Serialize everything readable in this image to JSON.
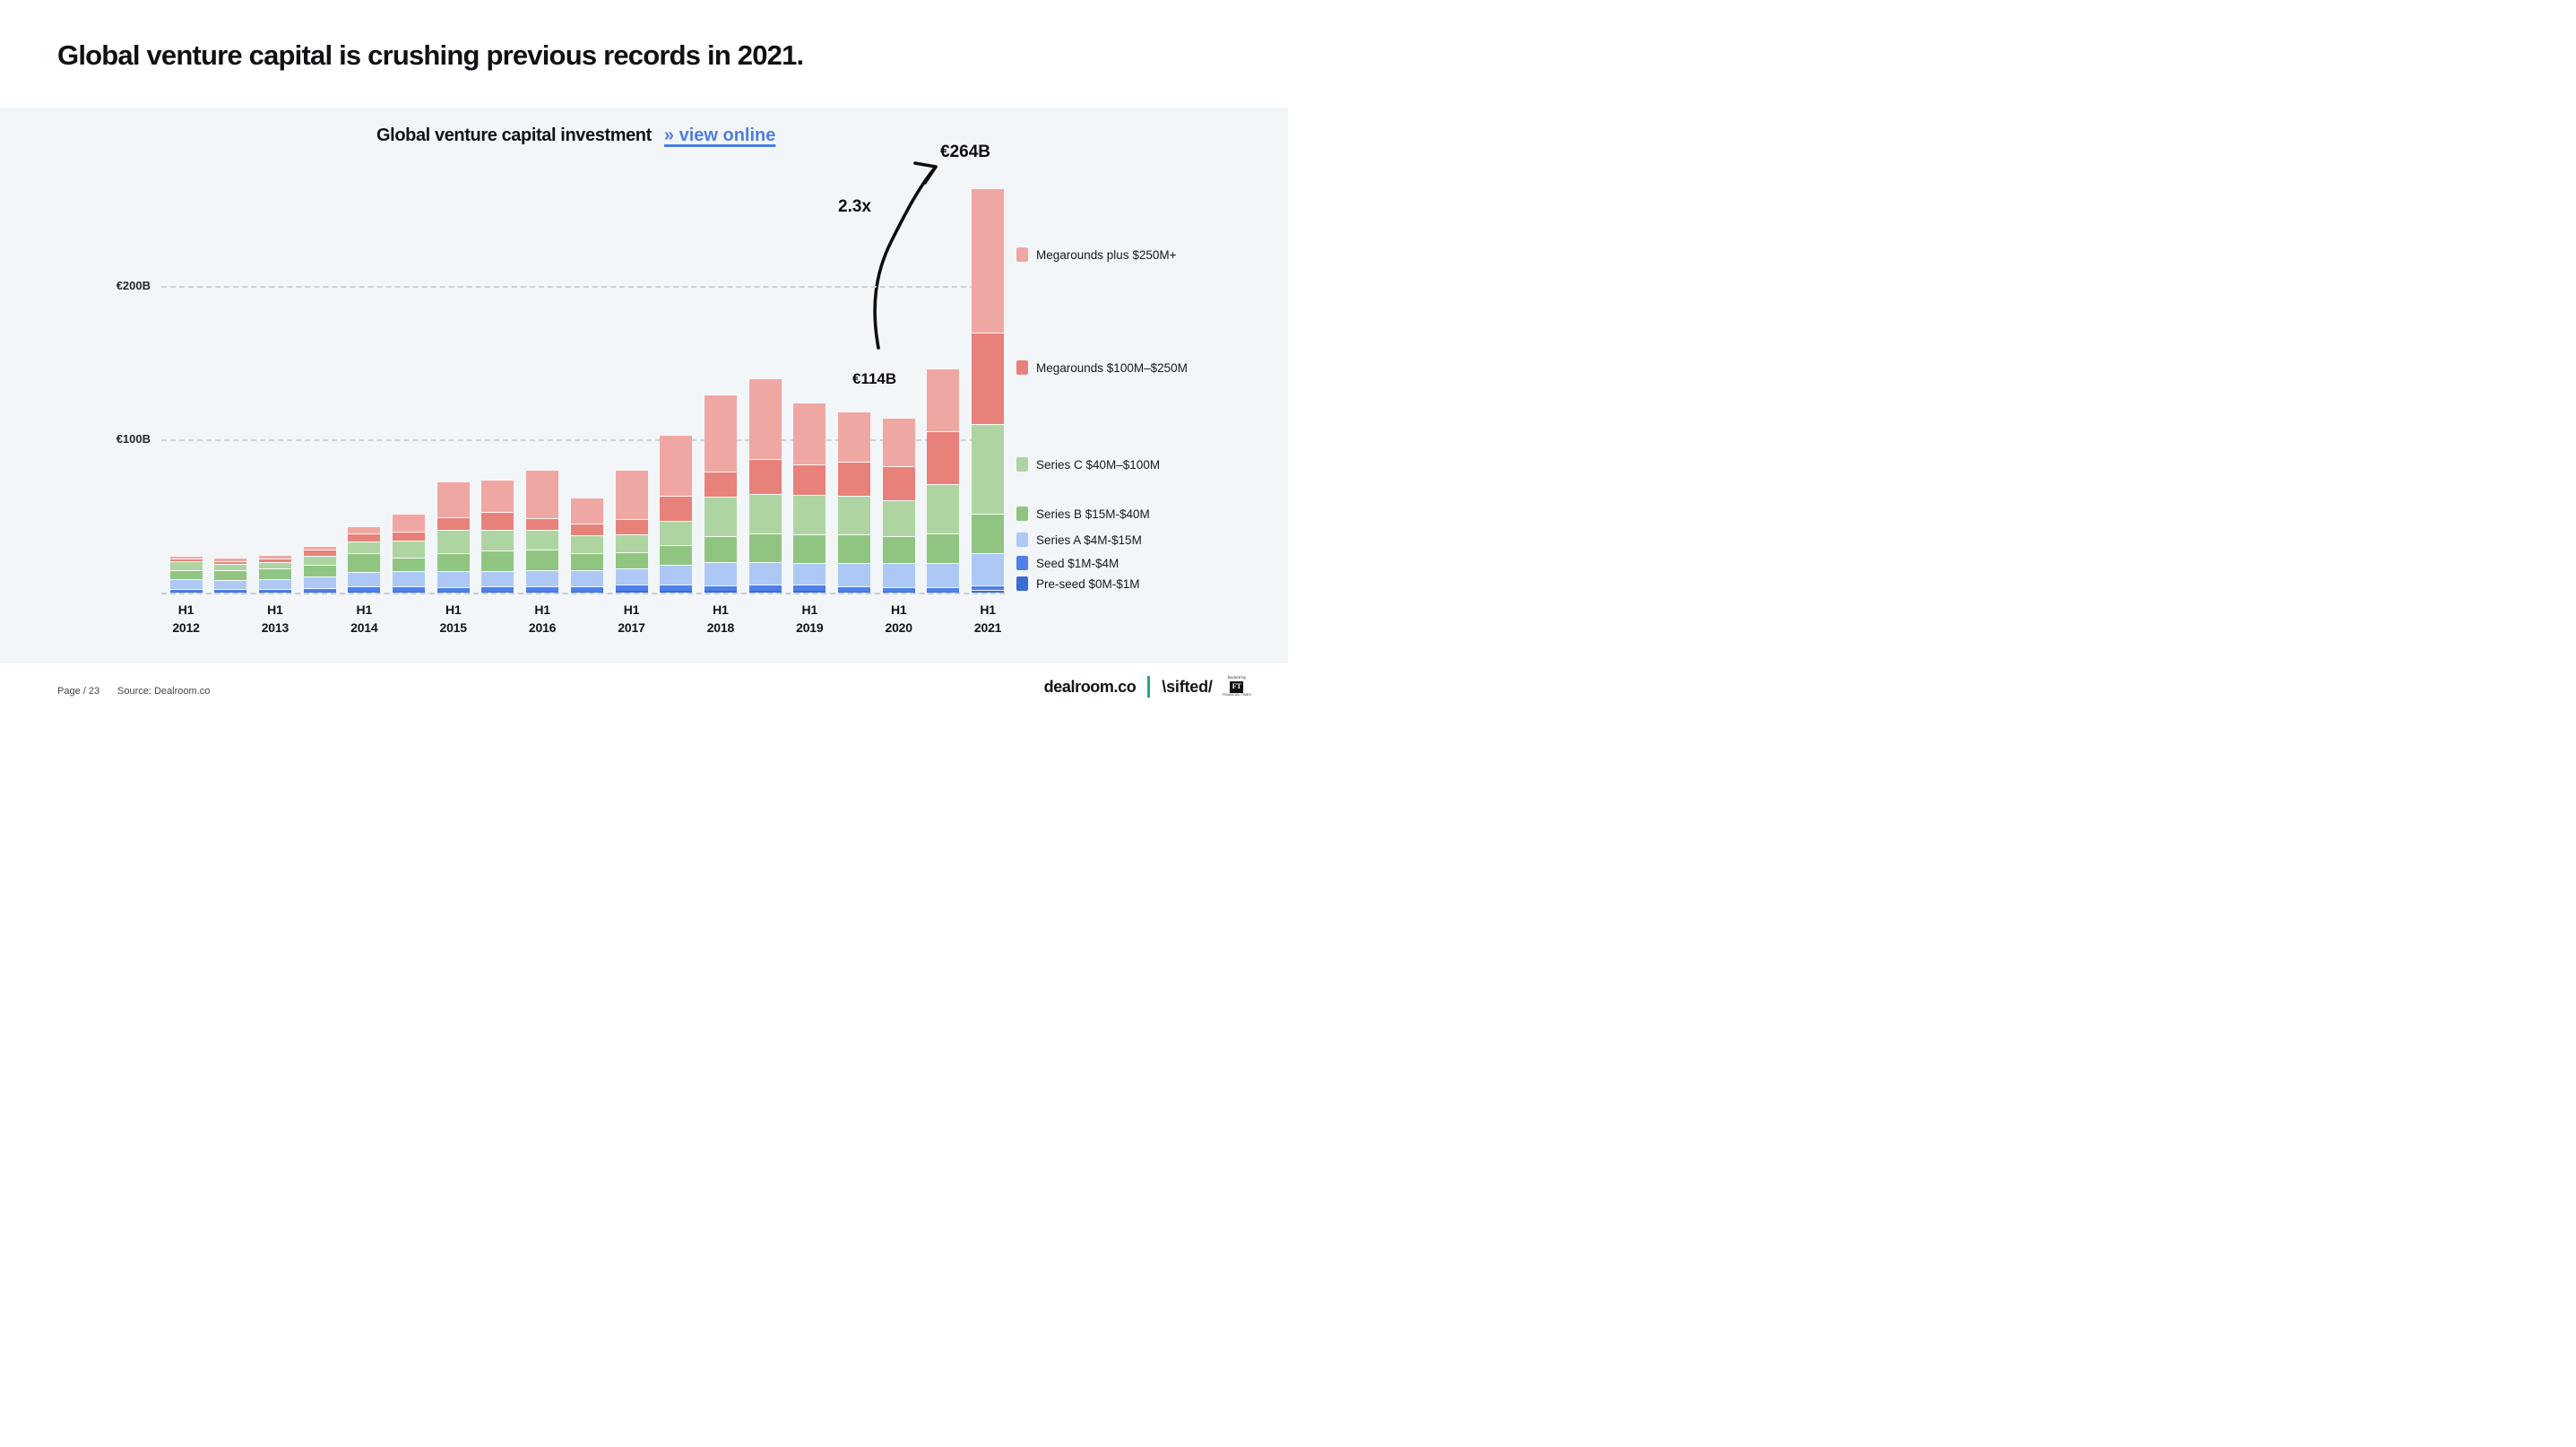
{
  "page": {
    "title": "Global venture capital is crushing previous records in 2021."
  },
  "chart_header": {
    "title": "Global venture capital investment",
    "link_label": "» view online"
  },
  "annotations": {
    "peak_value": "€264B",
    "multiplier": "2.3x",
    "reference_value": "€114B"
  },
  "y_axis": {
    "ticks": [
      {
        "label": "€200B",
        "value": 200
      },
      {
        "label": "€100B",
        "value": 100
      }
    ]
  },
  "legend": [
    {
      "label": "Megarounds plus $250M+",
      "color": "#efa7a3"
    },
    {
      "label": "Megarounds $100M–$250M",
      "color": "#e8817a"
    },
    {
      "label": "Series C $40M–$100M",
      "color": "#aed5a1"
    },
    {
      "label": "Series B $15M-$40M",
      "color": "#90c581"
    },
    {
      "label": "Series A $4M-$15M",
      "color": "#adc8f4"
    },
    {
      "label": "Seed $1M-$4M",
      "color": "#4d80e8"
    },
    {
      "label": "Pre-seed $0M-$1M",
      "color": "#3a6bd6"
    }
  ],
  "chart_data": {
    "type": "bar",
    "stacked": true,
    "title": "Global venture capital investment",
    "unit": "EUR billion (€B)",
    "ylim": [
      0,
      280
    ],
    "gridlines": [
      100,
      200
    ],
    "grid": "dashed-horizontal",
    "legend_position": "right",
    "categories": [
      "H1 2012",
      "H2 2012",
      "H1 2013",
      "H2 2013",
      "H1 2014",
      "H2 2014",
      "H1 2015",
      "H2 2015",
      "H1 2016",
      "H2 2016",
      "H1 2017",
      "H2 2017",
      "H1 2018",
      "H2 2018",
      "H1 2019",
      "H2 2019",
      "H1 2020",
      "H2 2020",
      "H1 2021"
    ],
    "x_tick_labels": [
      "H1 2012",
      "H1 2013",
      "H1 2014",
      "H1 2015",
      "H1 2016",
      "H1 2017",
      "H1 2018",
      "H1 2019",
      "H1 2020",
      "H1 2021"
    ],
    "series": [
      {
        "name": "Pre-seed $0M-$1M",
        "color": "#3a6bd6",
        "values": [
          0.5,
          0.5,
          0.5,
          0.6,
          0.7,
          0.7,
          0.8,
          0.8,
          0.8,
          0.8,
          1.0,
          1.0,
          1.0,
          1.0,
          1.0,
          0.8,
          0.8,
          0.8,
          1.5
        ]
      },
      {
        "name": "Seed $1M-$4M",
        "color": "#4d80e8",
        "values": [
          1.7,
          1.7,
          1.9,
          2.3,
          3.4,
          3.2,
          2.8,
          3.2,
          3.5,
          3.4,
          4.2,
          4.5,
          3.6,
          4.1,
          4.0,
          3.3,
          3.0,
          3.0,
          3.0
        ]
      },
      {
        "name": "Series A $4M-$15M",
        "color": "#adc8f4",
        "values": [
          6.4,
          6.1,
          6.3,
          7.9,
          9.2,
          9.9,
          10.3,
          10.1,
          10.6,
          10.6,
          10.8,
          12.6,
          15.2,
          14.7,
          14.5,
          15.3,
          15.5,
          15.5,
          21.5
        ]
      },
      {
        "name": "Series B $15M-$40M",
        "color": "#90c581",
        "values": [
          6.3,
          6.5,
          6.9,
          7.6,
          12.2,
          8.9,
          12.0,
          13.4,
          13.2,
          10.7,
          10.2,
          12.8,
          17.2,
          18.9,
          18.3,
          18.6,
          17.4,
          19.5,
          25.5
        ]
      },
      {
        "name": "Series C $40M–$100M",
        "color": "#aed5a1",
        "values": [
          5.5,
          3.9,
          4.5,
          5.7,
          8.1,
          11.1,
          14.8,
          13.7,
          12.8,
          11.7,
          12.0,
          15.9,
          25.6,
          25.8,
          25.9,
          24.9,
          23.5,
          32.0,
          58.5
        ]
      },
      {
        "name": "Megarounds $100M–$250M",
        "color": "#e8817a",
        "values": [
          2.0,
          1.8,
          2.1,
          4.3,
          5.2,
          5.8,
          8.2,
          11.3,
          7.5,
          7.7,
          9.5,
          16.2,
          16.2,
          22.8,
          20.0,
          22.6,
          22.5,
          34.2,
          59.5
        ]
      },
      {
        "name": "Megarounds plus $250M+",
        "color": "#efa7a3",
        "values": [
          1.6,
          2.1,
          2.4,
          2.3,
          4.6,
          12.1,
          23.5,
          21.3,
          31.6,
          17.1,
          32.3,
          40.0,
          50.2,
          52.7,
          40.3,
          32.5,
          31.3,
          41.0,
          94.5
        ]
      }
    ],
    "totals": [
      24.0,
      22.6,
      24.6,
      30.7,
      43.4,
      51.7,
      72.4,
      73.8,
      80.0,
      62.0,
      80.0,
      103.0,
      129.0,
      140.0,
      124.0,
      118.0,
      114.0,
      146.0,
      264.0
    ],
    "callouts": [
      {
        "category": "H1 2020",
        "label": "€114B"
      },
      {
        "category": "H1 2021",
        "label": "€264B"
      },
      {
        "label": "2.3x",
        "meaning": "growth from H1 2020 to H1 2021"
      }
    ]
  },
  "footer": {
    "page_label": "Page / 23",
    "source_label": "Source: Dealroom.co",
    "dealroom_logo": "dealroom.co",
    "sifted_logo": "\\sifted/",
    "ft_backed_by": "backed by",
    "ft_initials": "FT",
    "ft_name": "FINANCIAL TIMES"
  }
}
